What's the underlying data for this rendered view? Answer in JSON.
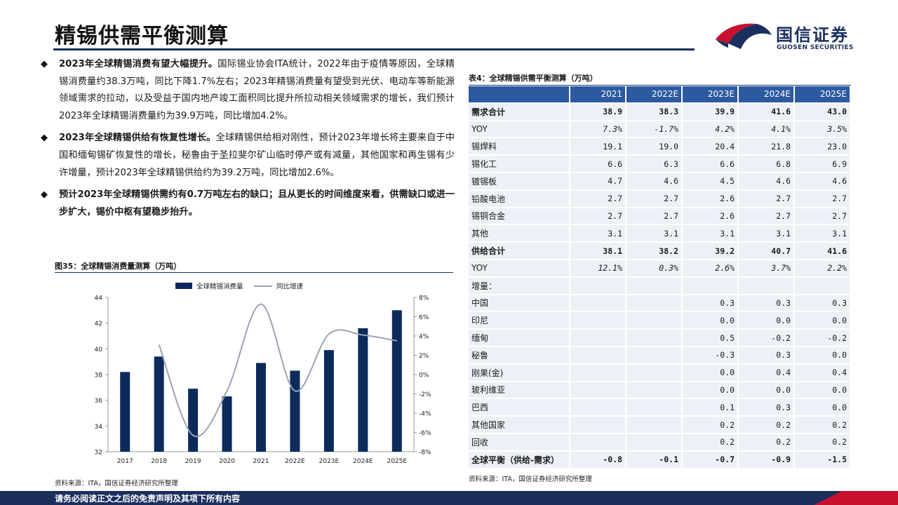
{
  "page": {
    "title": "精锡供需平衡测算",
    "footer": "请务必阅读正文之后的免责声明及其项下所有内容"
  },
  "logo": {
    "cn": "国信证券",
    "en": "GUOSEN SECURITIES"
  },
  "bullets": [
    {
      "lead": "2023年全球精锡消费有望大幅提升。",
      "body": "国际锡业协会ITA统计，2022年由于疫情等原因，全球精锡消费量约38.3万吨，同比下降1.7%左右；2023年精锡消费量有望受到光伏、电动车等新能源领域需求的拉动，以及受益于国内地产竣工面积同比提升所拉动相关领域需求的增长，我们预计2023年全球精锡消费量约为39.9万吨，同比增加4.2%。"
    },
    {
      "lead": "2023年全球精锡供给有恢复性增长。",
      "body": "全球精锡供给相对刚性，预计2023年增长将主要来自于中国和缅甸锡矿恢复性的增长，秘鲁由于圣拉斐尔矿山临时停产或有减量，其他国家和再生锡有少许增量，预计2023年全球精锡供给约为39.2万吨，同比增加2.6%。"
    },
    {
      "lead": "预计2023年全球精锡供需约有0.7万吨左右的缺口；且从更长的时间维度来看，供需缺口或进一步扩大，锡价中枢有望稳步抬升。",
      "body": ""
    }
  ],
  "figure": {
    "title": "图35：全球精锡消费量测算（万吨）",
    "source": "资料来源：ITA，国信证券经济研究所整理"
  },
  "chart_data": {
    "type": "bar",
    "categories": [
      "2017",
      "2018",
      "2019",
      "2020",
      "2021",
      "2022E",
      "2023E",
      "2024E",
      "2025E"
    ],
    "series": [
      {
        "name": "全球精锡消费量",
        "type": "bar",
        "axis": "left",
        "color": "#0d2a5c",
        "values": [
          38.2,
          39.4,
          36.9,
          36.3,
          38.9,
          38.3,
          39.9,
          41.6,
          43.0
        ]
      },
      {
        "name": "同比增速",
        "type": "line",
        "axis": "right",
        "color": "#9aa3b5",
        "values": [
          null,
          3.1,
          -6.3,
          -1.7,
          7.3,
          -1.7,
          4.2,
          4.1,
          3.5
        ]
      }
    ],
    "y_left": {
      "min": 32,
      "max": 44,
      "ticks": [
        "32",
        "34",
        "36",
        "38",
        "40",
        "42",
        "44"
      ]
    },
    "y_right": {
      "min": -8,
      "max": 8,
      "ticks": [
        "-8%",
        "-6%",
        "-4%",
        "-2%",
        "0%",
        "2%",
        "4%",
        "6%",
        "8%"
      ]
    },
    "legend_position": "top-center",
    "grid": false
  },
  "table": {
    "title": "表4：全球精锡供需平衡测算（万吨）",
    "source": "资料来源：ITA，国信证券经济研究所整理",
    "columns": [
      "",
      "2021",
      "2022E",
      "2023E",
      "2024E",
      "2025E"
    ],
    "rows": [
      {
        "label": "需求合计",
        "values": [
          "38.9",
          "38.3",
          "39.9",
          "41.6",
          "43.0"
        ],
        "style": "bold"
      },
      {
        "label": "YOY",
        "values": [
          "7.3%",
          "-1.7%",
          "4.2%",
          "4.1%",
          "3.5%"
        ],
        "style": "yoy"
      },
      {
        "label": "锡焊料",
        "values": [
          "19.1",
          "19.0",
          "20.4",
          "21.8",
          "23.0"
        ],
        "style": ""
      },
      {
        "label": "锡化工",
        "values": [
          "6.6",
          "6.3",
          "6.6",
          "6.8",
          "6.9"
        ],
        "style": ""
      },
      {
        "label": "镀锡板",
        "values": [
          "4.7",
          "4.6",
          "4.5",
          "4.6",
          "4.6"
        ],
        "style": ""
      },
      {
        "label": "铅酸电池",
        "values": [
          "2.7",
          "2.7",
          "2.6",
          "2.7",
          "2.7"
        ],
        "style": ""
      },
      {
        "label": "锡铜合金",
        "values": [
          "2.7",
          "2.7",
          "2.6",
          "2.7",
          "2.7"
        ],
        "style": ""
      },
      {
        "label": "其他",
        "values": [
          "3.1",
          "3.1",
          "3.1",
          "3.1",
          "3.1"
        ],
        "style": ""
      },
      {
        "label": "供给合计",
        "values": [
          "38.1",
          "38.2",
          "39.2",
          "40.7",
          "41.6"
        ],
        "style": "bold"
      },
      {
        "label": "YOY",
        "values": [
          "12.1%",
          "0.3%",
          "2.6%",
          "3.7%",
          "2.2%"
        ],
        "style": "yoy"
      },
      {
        "label": "增量：",
        "values": [
          "",
          "",
          "",
          "",
          ""
        ],
        "style": ""
      },
      {
        "label": "中国",
        "values": [
          "",
          "",
          "0.3",
          "0.3",
          "0.3"
        ],
        "style": ""
      },
      {
        "label": "印尼",
        "values": [
          "",
          "",
          "0.0",
          "0.0",
          "0.0"
        ],
        "style": ""
      },
      {
        "label": "缅甸",
        "values": [
          "",
          "",
          "0.5",
          "-0.2",
          "-0.2"
        ],
        "style": ""
      },
      {
        "label": "秘鲁",
        "values": [
          "",
          "",
          "-0.3",
          "0.3",
          "0.0"
        ],
        "style": ""
      },
      {
        "label": "刚果(金)",
        "values": [
          "",
          "",
          "0.0",
          "0.4",
          "0.4"
        ],
        "style": ""
      },
      {
        "label": "玻利维亚",
        "values": [
          "",
          "",
          "0.0",
          "0.0",
          "0.0"
        ],
        "style": ""
      },
      {
        "label": "巴西",
        "values": [
          "",
          "",
          "0.1",
          "0.3",
          "0.0"
        ],
        "style": ""
      },
      {
        "label": "其他国家",
        "values": [
          "",
          "",
          "0.2",
          "0.2",
          "0.2"
        ],
        "style": ""
      },
      {
        "label": "回收",
        "values": [
          "",
          "",
          "0.2",
          "0.2",
          "0.2"
        ],
        "style": ""
      },
      {
        "label": "全球平衡（供给-需求）",
        "values": [
          "-0.8",
          "-0.1",
          "-0.7",
          "-0.9",
          "-1.5"
        ],
        "style": "bold"
      }
    ]
  },
  "colors": {
    "navy": "#1b2f5e",
    "header_blue": "#2c5aa0",
    "row_bg": "#edf1f7",
    "brand_red": "#c8102e"
  }
}
